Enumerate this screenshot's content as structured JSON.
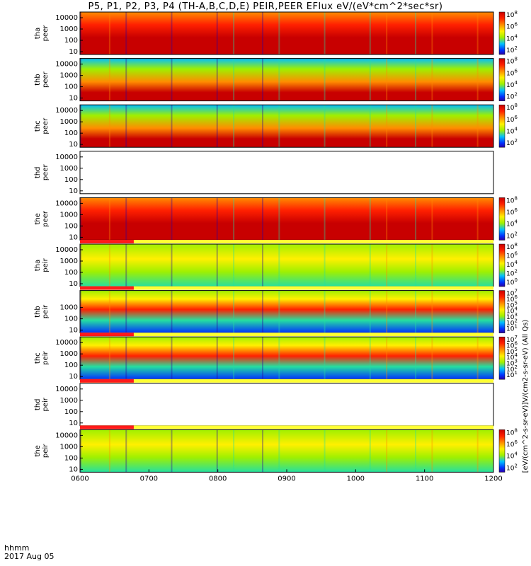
{
  "title": "P5, P1, P2, P3, P4 (TH-A,B,C,D,E) PEIR,PEER EFlux eV/(eV*cm^2*sec*sr)",
  "footer": {
    "axis_label": "hhmm",
    "date": "2017 Aug 05"
  },
  "colorbar_unit_label": "[eV/(cm^2-s-sr-eV)]V/(cm2-s-sr-eV) (All Qs)",
  "colors": {
    "spectrogram_scale": [
      "#2a00a0",
      "#0030ff",
      "#00bfff",
      "#25e0a0",
      "#9ff000",
      "#fff000",
      "#ff8c00",
      "#ff2000",
      "#c80000"
    ],
    "flag_red": "#ff1a1a",
    "flag_yellow": "#ffff33",
    "line": "#000000"
  },
  "chart_data": {
    "type": "heatmap",
    "x_tick_labels": [
      "0600",
      "0700",
      "0800",
      "0900",
      "1000",
      "1100",
      "1200"
    ],
    "x_range": [
      "0600",
      "1200"
    ],
    "y_scale": "log",
    "y_tick_labels": [
      "10000",
      "1000",
      "100",
      "10"
    ],
    "panels": [
      {
        "label_top": "tha",
        "label_bottom": "peer",
        "has_data": true,
        "colorbar_ticks": [
          "10^8",
          "10^6",
          "10^4",
          "10^2"
        ],
        "y_ticks": [
          "10000",
          "1000",
          "100",
          "10"
        ]
      },
      {
        "label_top": "thb",
        "label_bottom": "peer",
        "has_data": true,
        "colorbar_ticks": [
          "10^8",
          "10^6",
          "10^4",
          "10^2"
        ],
        "y_ticks": [
          "10000",
          "1000",
          "100",
          "10"
        ]
      },
      {
        "label_top": "thc",
        "label_bottom": "peer",
        "has_data": true,
        "colorbar_ticks": [
          "10^8",
          "10^6",
          "10^4",
          "10^2"
        ],
        "y_ticks": [
          "10000",
          "1000",
          "100",
          "10"
        ]
      },
      {
        "label_top": "thd",
        "label_bottom": "peer",
        "has_data": false,
        "colorbar_ticks": [],
        "y_ticks": [
          "10000",
          "1000",
          "100",
          "10"
        ]
      },
      {
        "label_top": "the",
        "label_bottom": "peer",
        "has_data": true,
        "colorbar_ticks": [
          "10^8",
          "10^6",
          "10^4",
          "10^2"
        ],
        "y_ticks": [
          "10000",
          "1000",
          "100",
          "10"
        ]
      },
      {
        "label_top": "tha",
        "label_bottom": "peir",
        "has_data": true,
        "colorbar_ticks": [
          "10^8",
          "10^6",
          "10^4",
          "10^2",
          "10^0"
        ],
        "y_ticks": [
          "10000",
          "1000",
          "100",
          "10"
        ]
      },
      {
        "label_top": "thb",
        "label_bottom": "peir",
        "has_data": true,
        "colorbar_ticks": [
          "10^7",
          "10^6",
          "10^5",
          "10^4",
          "10^3",
          "10^2",
          "10^1"
        ],
        "y_ticks": [
          "1000",
          "100",
          "10"
        ]
      },
      {
        "label_top": "thc",
        "label_bottom": "peir",
        "has_data": true,
        "colorbar_ticks": [
          "10^7",
          "10^6",
          "10^5",
          "10^4",
          "10^3",
          "10^2",
          "10^1"
        ],
        "y_ticks": [
          "10000",
          "1000",
          "100",
          "10"
        ]
      },
      {
        "label_top": "thd",
        "label_bottom": "peir",
        "has_data": false,
        "colorbar_ticks": [],
        "y_ticks": [
          "10000",
          "1000",
          "100",
          "10"
        ]
      },
      {
        "label_top": "the",
        "label_bottom": "peir",
        "has_data": true,
        "colorbar_ticks": [
          "10^8",
          "10^6",
          "10^4",
          "10^2"
        ],
        "y_ticks": [
          "10000",
          "1000",
          "100",
          "10"
        ]
      }
    ]
  }
}
